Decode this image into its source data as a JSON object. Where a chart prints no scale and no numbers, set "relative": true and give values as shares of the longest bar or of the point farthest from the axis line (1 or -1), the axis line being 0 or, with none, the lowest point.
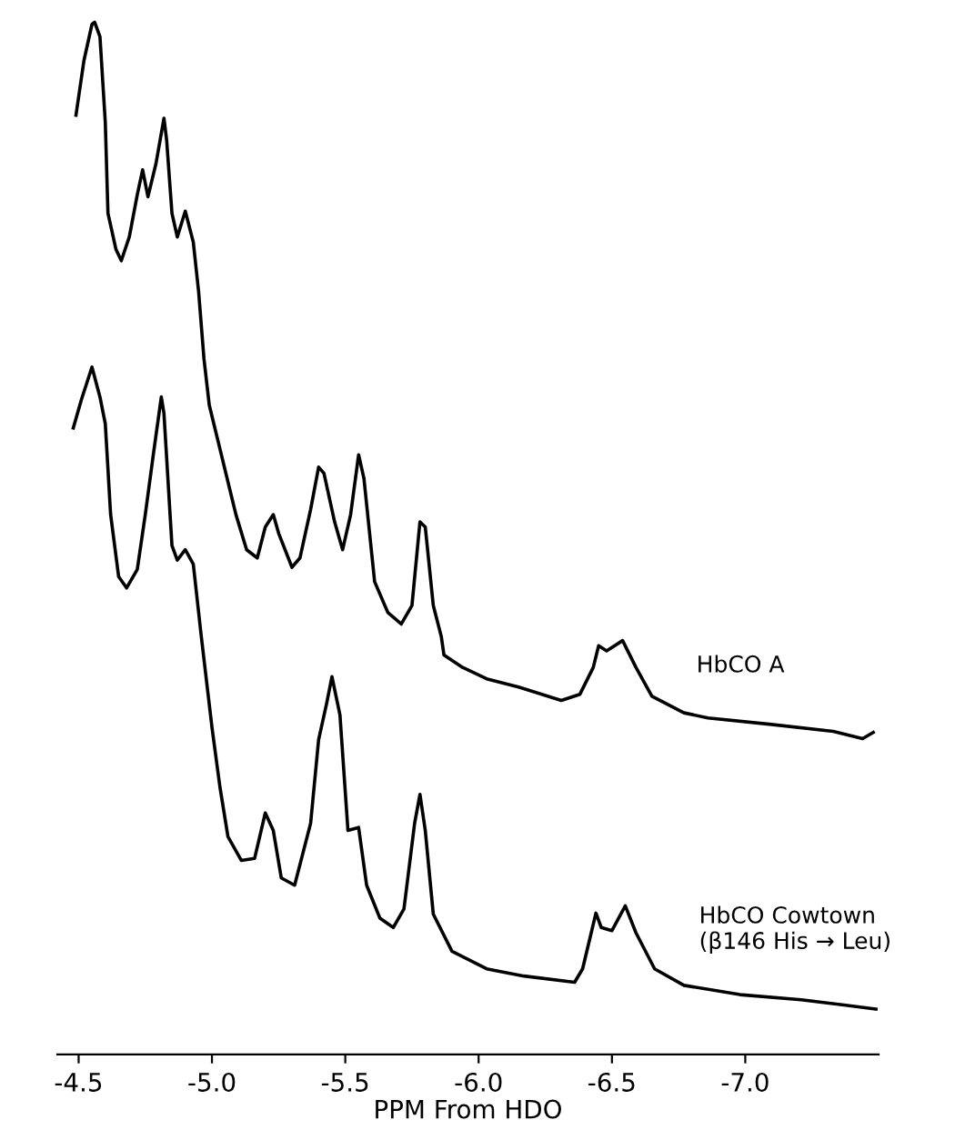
{
  "chart_data": {
    "type": "line",
    "xlabel": "PPM From HDO",
    "relative": true,
    "xlim": [
      -4.42,
      -7.5
    ],
    "xticks": [
      -4.5,
      {
        "value": -5.0,
        "label": "-5.0"
      },
      -5.5,
      {
        "value": -6.0,
        "label": "-6.0"
      },
      -6.5,
      {
        "value": -7.0,
        "label": "-7.0"
      }
    ],
    "grid": false,
    "legend": false,
    "marker": "none",
    "line_style": "solid",
    "series": [
      {
        "name": "HbCO A",
        "color": "#000000",
        "x": [
          -4.49,
          -4.52,
          -4.55,
          -4.56,
          -4.58,
          -4.6,
          -4.61,
          -4.64,
          -4.66,
          -4.69,
          -4.72,
          -4.74,
          -4.76,
          -4.79,
          -4.82,
          -4.83,
          -4.85,
          -4.87,
          -4.9,
          -4.93,
          -4.95,
          -4.97,
          -4.99,
          -5.04,
          -5.09,
          -5.13,
          -5.17,
          -5.2,
          -5.23,
          -5.25,
          -5.3,
          -5.33,
          -5.37,
          -5.4,
          -5.42,
          -5.46,
          -5.49,
          -5.52,
          -5.55,
          -5.57,
          -5.61,
          -5.66,
          -5.71,
          -5.75,
          -5.78,
          -5.8,
          -5.83,
          -5.86,
          -5.87,
          -5.94,
          -6.03,
          -6.15,
          -6.31,
          -6.38,
          -6.43,
          -6.45,
          -6.48,
          -6.54,
          -6.59,
          -6.65,
          -6.77,
          -6.86,
          -7.09,
          -7.33,
          -7.44,
          -7.48
        ],
        "values": [
          0.91,
          0.963,
          0.998,
          1.0,
          0.986,
          0.903,
          0.815,
          0.78,
          0.769,
          0.792,
          0.833,
          0.857,
          0.831,
          0.863,
          0.907,
          0.886,
          0.815,
          0.792,
          0.817,
          0.787,
          0.739,
          0.674,
          0.629,
          0.576,
          0.523,
          0.489,
          0.481,
          0.511,
          0.523,
          0.505,
          0.472,
          0.481,
          0.528,
          0.569,
          0.563,
          0.516,
          0.489,
          0.523,
          0.581,
          0.558,
          0.458,
          0.428,
          0.417,
          0.435,
          0.516,
          0.511,
          0.435,
          0.405,
          0.387,
          0.375,
          0.364,
          0.356,
          0.343,
          0.349,
          0.375,
          0.396,
          0.391,
          0.401,
          0.375,
          0.347,
          0.331,
          0.326,
          0.32,
          0.313,
          0.306,
          0.312
        ]
      },
      {
        "name": "HbCO Cowtown\n(β146 His → Leu)",
        "color": "#000000",
        "x": [
          -4.48,
          -4.51,
          -4.55,
          -4.58,
          -4.6,
          -4.62,
          -4.65,
          -4.68,
          -4.72,
          -4.75,
          -4.78,
          -4.81,
          -4.82,
          -4.85,
          -4.87,
          -4.9,
          -4.93,
          -4.96,
          -5.0,
          -5.03,
          -5.06,
          -5.11,
          -5.16,
          -5.2,
          -5.23,
          -5.26,
          -5.31,
          -5.37,
          -5.4,
          -5.43,
          -5.45,
          -5.48,
          -5.51,
          -5.55,
          -5.58,
          -5.63,
          -5.68,
          -5.72,
          -5.76,
          -5.78,
          -5.8,
          -5.83,
          -5.9,
          -6.03,
          -6.17,
          -6.36,
          -6.39,
          -6.44,
          -6.46,
          -6.5,
          -6.55,
          -6.59,
          -6.66,
          -6.77,
          -6.98,
          -7.21,
          -7.37,
          -7.49
        ],
        "values": [
          0.607,
          0.634,
          0.666,
          0.637,
          0.611,
          0.523,
          0.463,
          0.452,
          0.47,
          0.523,
          0.581,
          0.637,
          0.621,
          0.493,
          0.479,
          0.489,
          0.475,
          0.405,
          0.317,
          0.259,
          0.211,
          0.188,
          0.19,
          0.234,
          0.217,
          0.171,
          0.164,
          0.224,
          0.305,
          0.34,
          0.366,
          0.329,
          0.217,
          0.22,
          0.164,
          0.132,
          0.123,
          0.141,
          0.224,
          0.252,
          0.217,
          0.136,
          0.1,
          0.083,
          0.076,
          0.07,
          0.083,
          0.137,
          0.123,
          0.12,
          0.144,
          0.118,
          0.083,
          0.067,
          0.058,
          0.053,
          0.048,
          0.044
        ]
      }
    ]
  }
}
